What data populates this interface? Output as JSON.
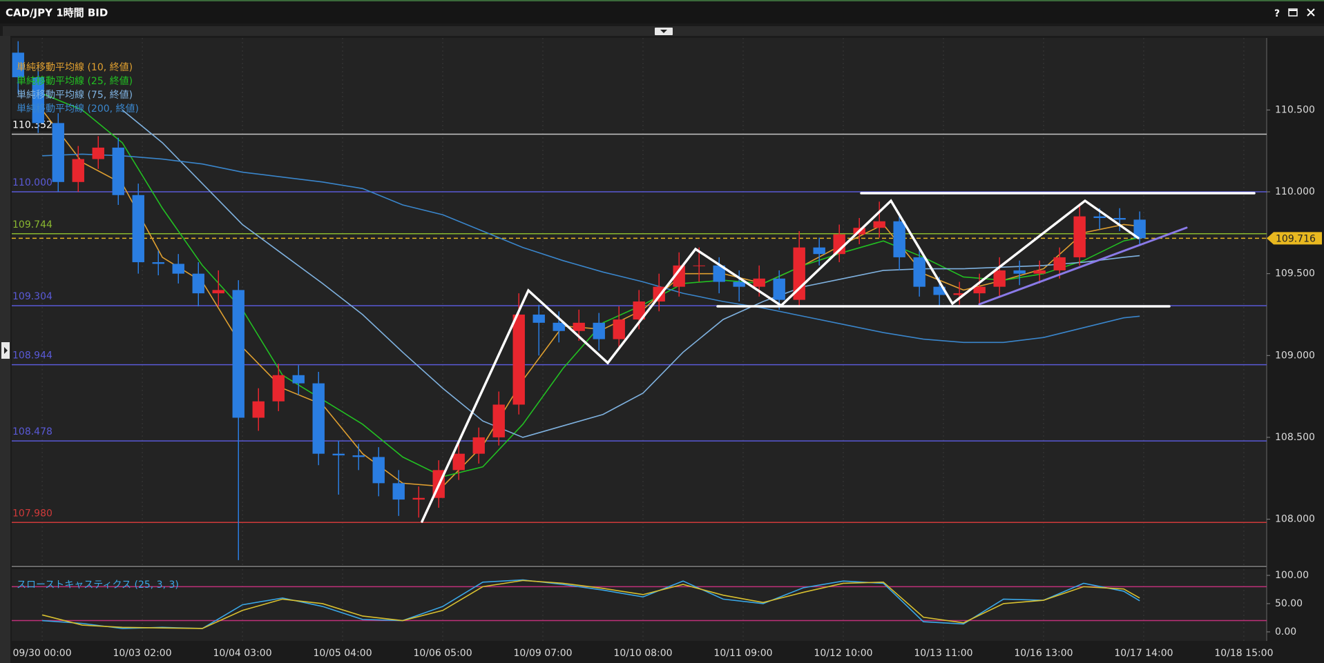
{
  "chart_data": {
    "type": "candlestick",
    "title": "CAD/JPY 1時間 BID",
    "help_icon": "?",
    "up_color": "#e8262e",
    "down_color": "#2a7de1",
    "x": [
      -6,
      -1,
      4,
      9,
      14,
      19,
      24,
      29,
      34,
      39,
      44,
      49,
      54,
      59,
      64,
      69,
      74,
      79,
      84,
      89,
      94,
      99,
      104,
      109,
      114,
      119,
      124,
      129,
      134,
      139,
      144,
      149,
      154,
      159,
      164,
      169,
      174,
      179,
      184,
      189,
      194,
      199,
      204,
      209,
      214,
      219,
      224,
      229,
      234,
      239,
      244,
      249,
      254,
      259,
      264,
      269,
      274
    ],
    "open": [
      110.85,
      110.7,
      110.42,
      110.06,
      110.2,
      110.27,
      109.98,
      109.57,
      109.56,
      109.5,
      109.38,
      109.4,
      108.62,
      108.72,
      108.88,
      108.83,
      108.4,
      108.39,
      108.38,
      108.22,
      108.12,
      108.13,
      108.3,
      108.4,
      108.5,
      108.7,
      109.25,
      109.2,
      109.15,
      109.2,
      109.1,
      109.22,
      109.33,
      109.42,
      109.55,
      109.55,
      109.45,
      109.42,
      109.47,
      109.34,
      109.66,
      109.62,
      109.74,
      109.78,
      109.82,
      109.6,
      109.42,
      109.37,
      109.38,
      109.42,
      109.52,
      109.5,
      109.52,
      109.6,
      109.85,
      109.84,
      109.83
    ],
    "high": [
      110.92,
      110.76,
      110.48,
      110.28,
      110.34,
      110.33,
      110.05,
      109.64,
      109.62,
      109.57,
      109.52,
      109.46,
      108.8,
      108.95,
      108.94,
      108.9,
      108.48,
      108.46,
      108.44,
      108.3,
      108.2,
      108.36,
      108.47,
      108.56,
      108.78,
      109.38,
      109.31,
      109.27,
      109.28,
      109.26,
      109.3,
      109.4,
      109.5,
      109.63,
      109.66,
      109.6,
      109.52,
      109.55,
      109.52,
      109.76,
      109.72,
      109.8,
      109.84,
      109.94,
      109.86,
      109.66,
      109.48,
      109.45,
      109.5,
      109.6,
      109.58,
      109.58,
      109.66,
      109.93,
      109.9,
      109.9,
      109.88
    ],
    "low": [
      110.6,
      110.36,
      110.0,
      110.0,
      110.14,
      109.92,
      109.5,
      109.49,
      109.44,
      109.3,
      109.3,
      107.75,
      108.54,
      108.66,
      108.76,
      108.33,
      108.15,
      108.3,
      108.14,
      108.02,
      108.01,
      108.07,
      108.24,
      108.34,
      108.45,
      108.64,
      109.0,
      109.08,
      109.09,
      109.03,
      109.05,
      109.16,
      109.27,
      109.36,
      109.45,
      109.38,
      109.33,
      109.36,
      109.28,
      109.3,
      109.55,
      109.57,
      109.68,
      109.72,
      109.52,
      109.36,
      109.3,
      109.31,
      109.3,
      109.36,
      109.43,
      109.44,
      109.47,
      109.55,
      109.77,
      109.76,
      109.68
    ],
    "close": [
      110.7,
      110.42,
      110.06,
      110.2,
      110.27,
      109.98,
      109.57,
      109.56,
      109.5,
      109.38,
      109.4,
      108.62,
      108.72,
      108.88,
      108.83,
      108.4,
      108.39,
      108.38,
      108.22,
      108.12,
      108.13,
      108.3,
      108.4,
      108.5,
      108.7,
      109.25,
      109.2,
      109.15,
      109.2,
      109.1,
      109.22,
      109.33,
      109.42,
      109.55,
      109.55,
      109.45,
      109.42,
      109.47,
      109.34,
      109.66,
      109.62,
      109.74,
      109.78,
      109.82,
      109.6,
      109.42,
      109.37,
      109.38,
      109.42,
      109.52,
      109.5,
      109.52,
      109.6,
      109.85,
      109.84,
      109.83,
      109.716
    ],
    "xlim": [
      -7.6,
      305.7
    ],
    "xticks": [
      {
        "value": 0,
        "label": "09/30 00:00"
      },
      {
        "value": 25,
        "label": "10/03 02:00"
      },
      {
        "value": 50,
        "label": "10/04 03:00"
      },
      {
        "value": 75,
        "label": "10/05 04:00"
      },
      {
        "value": 100,
        "label": "10/06 05:00"
      },
      {
        "value": 125,
        "label": "10/09 07:00"
      },
      {
        "value": 150,
        "label": "10/10 08:00"
      },
      {
        "value": 175,
        "label": "10/11 09:00"
      },
      {
        "value": 200,
        "label": "10/12 10:00"
      },
      {
        "value": 225,
        "label": "10/13 11:00"
      },
      {
        "value": 250,
        "label": "10/16 13:00"
      },
      {
        "value": 275,
        "label": "10/17 14:00"
      },
      {
        "value": 300,
        "label": "10/18 15:00"
      }
    ],
    "ylim": [
      107.72,
      110.94
    ],
    "yticks": [
      {
        "value": 108,
        "label": "108.000"
      },
      {
        "value": 108.5,
        "label": "108.500"
      },
      {
        "value": 109,
        "label": "109.000"
      },
      {
        "value": 109.5,
        "label": "109.500"
      },
      {
        "value": 110,
        "label": "110.000"
      },
      {
        "value": 110.5,
        "label": "110.500"
      }
    ],
    "levels": [
      {
        "value": 110.352,
        "label": "110.352",
        "color": "#c8c8c8"
      },
      {
        "value": 110,
        "label": "110.000",
        "color": "#5a5ad8"
      },
      {
        "value": 109.744,
        "label": "109.744",
        "color": "#8ab830"
      },
      {
        "value": 109.304,
        "label": "109.304",
        "color": "#5a5ad8"
      },
      {
        "value": 108.944,
        "label": "108.944",
        "color": "#5a5ad8"
      },
      {
        "value": 108.478,
        "label": "108.478",
        "color": "#5a5ad8"
      },
      {
        "value": 107.98,
        "label": "107.980",
        "color": "#d03a3a"
      }
    ],
    "current": {
      "value": 109.716,
      "label": "109.716",
      "color": "#e8b820"
    },
    "overlays": {
      "x": [
        0,
        10,
        20,
        30,
        40,
        50,
        60,
        70,
        80,
        90,
        100,
        110,
        120,
        130,
        140,
        150,
        160,
        170,
        180,
        190,
        200,
        210,
        220,
        230,
        240,
        250,
        260,
        270,
        274
      ],
      "series": [
        {
          "name": "単純移動平均線 (10, 終値)",
          "color": "#e0a030",
          "values": [
            110.5,
            110.18,
            110.05,
            109.6,
            109.45,
            109.05,
            108.8,
            108.7,
            108.4,
            108.22,
            108.2,
            108.45,
            108.85,
            109.18,
            109.16,
            109.28,
            109.5,
            109.5,
            109.44,
            109.55,
            109.68,
            109.8,
            109.5,
            109.4,
            109.46,
            109.53,
            109.75,
            109.8,
            109.79
          ]
        },
        {
          "name": "単純移動平均線 (25, 終値)",
          "color": "#22c022",
          "values": [
            110.6,
            110.5,
            110.3,
            109.9,
            109.55,
            109.28,
            108.88,
            108.73,
            108.58,
            108.38,
            108.26,
            108.32,
            108.58,
            108.92,
            109.2,
            109.31,
            109.44,
            109.46,
            109.44,
            109.55,
            109.63,
            109.7,
            109.6,
            109.48,
            109.46,
            109.5,
            109.58,
            109.7,
            109.72
          ]
        },
        {
          "name": "単純移動平均線 (75, 終値)",
          "color": "#7fb2e0",
          "values": [
            null,
            null,
            110.5,
            110.3,
            110.05,
            109.8,
            109.62,
            109.44,
            109.25,
            109.02,
            108.8,
            108.6,
            108.5,
            108.57,
            108.64,
            108.77,
            109.02,
            109.22,
            109.33,
            109.42,
            109.47,
            109.52,
            109.53,
            109.53,
            109.54,
            109.55,
            109.57,
            109.6,
            109.61
          ]
        },
        {
          "name": "単純移動平均線 (200, 終値)",
          "color": "#3a86cc",
          "values": [
            110.22,
            110.23,
            110.22,
            110.2,
            110.17,
            110.12,
            110.09,
            110.06,
            110.02,
            109.92,
            109.86,
            109.76,
            109.66,
            109.58,
            109.51,
            109.45,
            109.38,
            109.33,
            109.29,
            109.24,
            109.19,
            109.14,
            109.1,
            109.08,
            109.08,
            109.11,
            109.17,
            109.23,
            109.24
          ]
        }
      ]
    },
    "oscillator": {
      "type": "line",
      "title": "スローストキャスティクス (25, 3, 3)",
      "x": [
        0,
        10,
        20,
        30,
        40,
        50,
        60,
        70,
        80,
        90,
        100,
        110,
        120,
        130,
        140,
        150,
        160,
        170,
        180,
        190,
        200,
        210,
        220,
        230,
        240,
        250,
        260,
        270,
        274
      ],
      "series": [
        {
          "color": "#3aa8e8",
          "values": [
            20,
            15,
            6,
            8,
            6,
            48,
            60,
            45,
            22,
            20,
            45,
            88,
            92,
            84,
            74,
            62,
            90,
            58,
            50,
            78,
            90,
            86,
            18,
            14,
            58,
            56,
            86,
            72,
            55
          ]
        },
        {
          "color": "#d8c030",
          "values": [
            30,
            12,
            8,
            7,
            6,
            38,
            58,
            50,
            28,
            20,
            38,
            80,
            91,
            86,
            77,
            66,
            84,
            65,
            52,
            70,
            86,
            88,
            26,
            16,
            50,
            56,
            80,
            76,
            60
          ]
        }
      ],
      "ylim": [
        -16,
        111
      ],
      "yticks": [
        {
          "value": 0,
          "label": "0.00"
        },
        {
          "value": 50,
          "label": "50.00"
        },
        {
          "value": 100,
          "label": "100.00"
        }
      ],
      "levels": [
        20,
        80
      ],
      "level_color": "#c0307a"
    }
  }
}
